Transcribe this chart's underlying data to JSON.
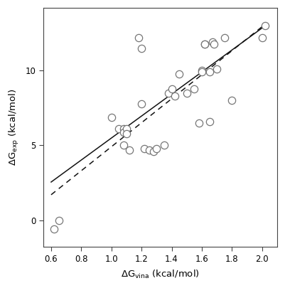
{
  "scatter_x": [
    0.62,
    0.65,
    1.0,
    1.05,
    1.08,
    1.08,
    1.08,
    1.1,
    1.1,
    1.12,
    1.18,
    1.2,
    1.2,
    1.22,
    1.25,
    1.28,
    1.3,
    1.35,
    1.38,
    1.4,
    1.42,
    1.45,
    1.5,
    1.55,
    1.58,
    1.6,
    1.6,
    1.62,
    1.62,
    1.65,
    1.65,
    1.67,
    1.68,
    1.7,
    1.75,
    1.8,
    2.0,
    2.02
  ],
  "scatter_y": [
    -0.6,
    0.0,
    6.9,
    6.1,
    6.1,
    5.9,
    5.0,
    6.1,
    5.8,
    4.7,
    12.2,
    11.5,
    7.8,
    4.8,
    4.7,
    4.6,
    4.8,
    5.0,
    8.5,
    8.8,
    8.3,
    9.8,
    8.5,
    8.8,
    6.5,
    10.0,
    9.9,
    11.8,
    11.8,
    6.6,
    9.9,
    11.9,
    11.8,
    10.1,
    12.2,
    8.0,
    12.2,
    13.0
  ],
  "solid_line_x": [
    0.6,
    2.02
  ],
  "solid_line_y": [
    2.55,
    13.0
  ],
  "dashed_line_x": [
    0.6,
    2.02
  ],
  "dashed_line_y": [
    1.7,
    13.1
  ],
  "xlabel": "ΔG$_\\mathregular{vina}$ (kcal/mol)",
  "ylabel": "ΔG$_\\mathregular{exp}$ (kcal/mol)",
  "xlim": [
    0.55,
    2.1
  ],
  "ylim": [
    -1.8,
    14.2
  ],
  "xticks": [
    0.6,
    0.8,
    1.0,
    1.2,
    1.4,
    1.6,
    1.8,
    2.0
  ],
  "yticks": [
    0,
    5,
    10
  ],
  "marker_size": 55,
  "marker_color": "white",
  "marker_edge_color": "#777777",
  "line_color": "#111111",
  "background_color": "white",
  "spine_color": "#444444",
  "tick_labelsize": 8.5,
  "label_fontsize": 9.5
}
